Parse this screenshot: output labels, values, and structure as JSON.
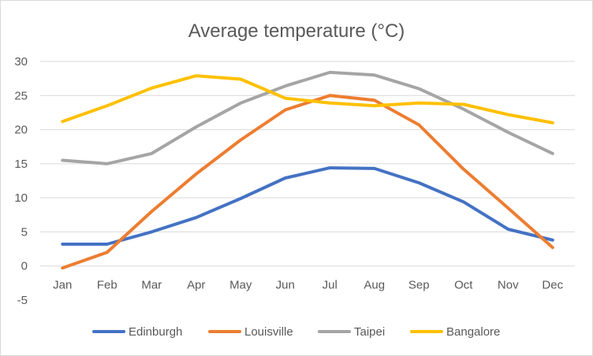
{
  "chart_data": {
    "type": "line",
    "title": "Average temperature (°C)",
    "xlabel": "",
    "ylabel": "",
    "categories": [
      "Jan",
      "Feb",
      "Mar",
      "Apr",
      "May",
      "Jun",
      "Jul",
      "Aug",
      "Sep",
      "Oct",
      "Nov",
      "Dec"
    ],
    "ylim": [
      -5,
      30
    ],
    "yticks": [
      30,
      25,
      20,
      15,
      10,
      5,
      0,
      -5
    ],
    "grid": true,
    "legend_position": "bottom",
    "series": [
      {
        "name": "Edinburgh",
        "color": "#4472C4",
        "values": [
          3.2,
          3.2,
          5.0,
          7.1,
          9.9,
          12.9,
          14.4,
          14.3,
          12.2,
          9.4,
          5.4,
          3.8
        ]
      },
      {
        "name": "Louisville",
        "color": "#ED7D31",
        "values": [
          -0.3,
          2.0,
          8.0,
          13.5,
          18.5,
          22.9,
          25.0,
          24.3,
          20.7,
          14.2,
          8.5,
          2.7
        ]
      },
      {
        "name": "Taipei",
        "color": "#A5A5A5",
        "values": [
          15.5,
          15.0,
          16.5,
          20.4,
          23.9,
          26.4,
          28.4,
          28.0,
          26.0,
          23.0,
          19.6,
          16.5
        ]
      },
      {
        "name": "Bangalore",
        "color": "#FFC000",
        "values": [
          21.2,
          23.5,
          26.1,
          27.9,
          27.4,
          24.6,
          23.9,
          23.5,
          23.9,
          23.7,
          22.2,
          21.0
        ]
      }
    ]
  }
}
